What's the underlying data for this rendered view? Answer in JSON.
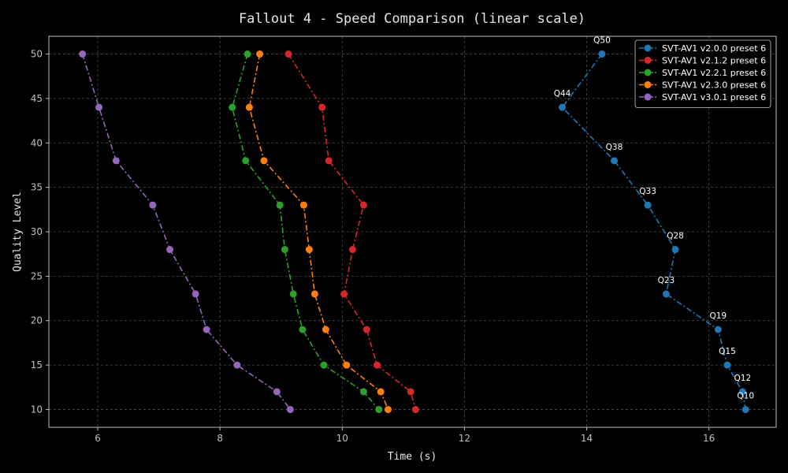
{
  "chart_data": {
    "type": "line",
    "title": "Fallout 4 - Speed Comparison (linear scale)",
    "xlabel": "Time (s)",
    "ylabel": "Quality Level",
    "xlim": [
      5.2,
      17.1
    ],
    "ylim": [
      8,
      52
    ],
    "xticks": [
      6,
      8,
      10,
      12,
      14,
      16
    ],
    "yticks": [
      10,
      15,
      20,
      25,
      30,
      35,
      40,
      45,
      50
    ],
    "grid": true,
    "legend_position": "top-right",
    "series": [
      {
        "name": "SVT-AV1 v2.0.0 preset 6",
        "color": "#1f77b4",
        "x": [
          14.25,
          13.6,
          14.45,
          15.0,
          15.45,
          15.3,
          16.15,
          16.3,
          16.55,
          16.6
        ],
        "y": [
          50,
          44,
          38,
          33,
          28,
          23,
          19,
          15,
          12,
          10
        ]
      },
      {
        "name": "SVT-AV1 v2.1.2 preset 6",
        "color": "#d62728",
        "x": [
          9.12,
          9.67,
          9.78,
          10.35,
          10.17,
          10.03,
          10.4,
          10.57,
          11.12,
          11.2
        ],
        "y": [
          50,
          44,
          38,
          33,
          28,
          23,
          19,
          15,
          12,
          10
        ]
      },
      {
        "name": "SVT-AV1 v2.2.1 preset 6",
        "color": "#2ca02c",
        "x": [
          8.45,
          8.2,
          8.42,
          8.98,
          9.06,
          9.2,
          9.35,
          9.7,
          10.35,
          10.6
        ],
        "y": [
          50,
          44,
          38,
          33,
          28,
          23,
          19,
          15,
          12,
          10
        ]
      },
      {
        "name": "SVT-AV1 v2.3.0 preset 6",
        "color": "#ff7f0e",
        "x": [
          8.65,
          8.48,
          8.72,
          9.37,
          9.46,
          9.55,
          9.73,
          10.07,
          10.63,
          10.75
        ],
        "y": [
          50,
          44,
          38,
          33,
          28,
          23,
          19,
          15,
          12,
          10
        ]
      },
      {
        "name": "SVT-AV1 v3.0.1 preset 6",
        "color": "#9467bd",
        "x": [
          5.75,
          6.02,
          6.3,
          6.9,
          7.18,
          7.6,
          7.78,
          8.28,
          8.93,
          9.15
        ],
        "y": [
          50,
          44,
          38,
          33,
          28,
          23,
          19,
          15,
          12,
          10
        ]
      }
    ],
    "annotations": [
      {
        "text": "Q50",
        "x": 14.25,
        "y": 50
      },
      {
        "text": "Q44",
        "x": 13.6,
        "y": 44
      },
      {
        "text": "Q38",
        "x": 14.45,
        "y": 38
      },
      {
        "text": "Q33",
        "x": 15.0,
        "y": 33
      },
      {
        "text": "Q28",
        "x": 15.45,
        "y": 28
      },
      {
        "text": "Q23",
        "x": 15.3,
        "y": 23
      },
      {
        "text": "Q19",
        "x": 16.15,
        "y": 19
      },
      {
        "text": "Q15",
        "x": 16.3,
        "y": 15
      },
      {
        "text": "Q12",
        "x": 16.55,
        "y": 12
      },
      {
        "text": "Q10",
        "x": 16.6,
        "y": 10
      }
    ]
  }
}
